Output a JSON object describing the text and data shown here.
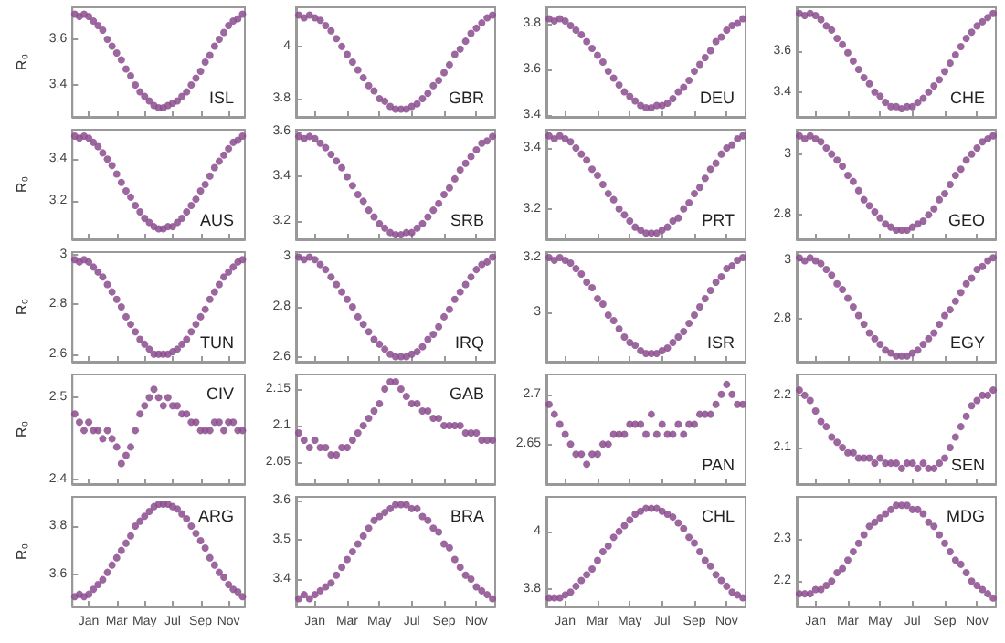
{
  "chart_data": [
    {
      "type": "scatter",
      "ylabel": "R₀",
      "annotations": [
        "ISL"
      ],
      "color": "#8b4c8e",
      "marker": "circle",
      "ylim": [
        3.26,
        3.74
      ],
      "yticks": [
        3.4,
        3.6
      ],
      "tick_labels": "y",
      "categories": [
        null,
        null,
        null,
        null,
        null,
        null,
        null,
        null,
        null,
        null,
        null,
        null,
        null,
        null,
        null,
        null,
        null,
        null,
        null,
        null,
        null,
        null,
        null,
        null,
        null,
        null,
        null,
        null,
        null,
        null,
        null,
        null,
        null,
        null,
        null,
        null,
        null
      ],
      "values": [
        3.71,
        3.7,
        3.71,
        3.7,
        3.68,
        3.66,
        3.64,
        3.6,
        3.57,
        3.54,
        3.51,
        3.47,
        3.44,
        3.4,
        3.37,
        3.35,
        3.33,
        3.31,
        3.3,
        3.3,
        3.31,
        3.32,
        3.33,
        3.35,
        3.37,
        3.4,
        3.43,
        3.46,
        3.5,
        3.53,
        3.57,
        3.6,
        3.63,
        3.66,
        3.68,
        3.69,
        3.71
      ]
    },
    {
      "type": "scatter",
      "annotations": [
        "GBR"
      ],
      "color": "#8b4c8e",
      "marker": "circle",
      "ylim": [
        3.73,
        4.15
      ],
      "yticks": [
        3.8,
        4
      ],
      "tick_labels": "y",
      "categories": [
        null,
        null,
        null,
        null,
        null,
        null,
        null,
        null,
        null,
        null,
        null,
        null,
        null,
        null,
        null,
        null,
        null,
        null,
        null,
        null,
        null,
        null,
        null,
        null,
        null,
        null,
        null,
        null,
        null,
        null,
        null,
        null,
        null,
        null,
        null,
        null,
        null
      ],
      "values": [
        4.12,
        4.11,
        4.12,
        4.11,
        4.1,
        4.08,
        4.06,
        4.03,
        4.0,
        3.97,
        3.94,
        3.91,
        3.88,
        3.85,
        3.83,
        3.8,
        3.79,
        3.77,
        3.76,
        3.76,
        3.76,
        3.77,
        3.78,
        3.8,
        3.82,
        3.85,
        3.87,
        3.9,
        3.93,
        3.97,
        3.99,
        4.02,
        4.05,
        4.07,
        4.09,
        4.11,
        4.12
      ]
    },
    {
      "type": "scatter",
      "annotations": [
        "DEU"
      ],
      "color": "#8b4c8e",
      "marker": "circle",
      "ylim": [
        3.39,
        3.87
      ],
      "yticks": [
        3.4,
        3.6,
        3.8
      ],
      "tick_labels": "y",
      "categories": [
        null,
        null,
        null,
        null,
        null,
        null,
        null,
        null,
        null,
        null,
        null,
        null,
        null,
        null,
        null,
        null,
        null,
        null,
        null,
        null,
        null,
        null,
        null,
        null,
        null,
        null,
        null,
        null,
        null,
        null,
        null,
        null,
        null,
        null,
        null,
        null,
        null
      ],
      "values": [
        3.82,
        3.81,
        3.82,
        3.81,
        3.79,
        3.77,
        3.75,
        3.72,
        3.69,
        3.66,
        3.63,
        3.59,
        3.56,
        3.53,
        3.5,
        3.48,
        3.46,
        3.44,
        3.43,
        3.43,
        3.44,
        3.44,
        3.45,
        3.47,
        3.5,
        3.52,
        3.55,
        3.59,
        3.62,
        3.65,
        3.68,
        3.72,
        3.74,
        3.77,
        3.79,
        3.8,
        3.82
      ]
    },
    {
      "type": "scatter",
      "annotations": [
        "CHE"
      ],
      "color": "#8b4c8e",
      "marker": "circle",
      "ylim": [
        3.28,
        3.81
      ],
      "yticks": [
        3.4,
        3.6
      ],
      "tick_labels": "y",
      "categories": [
        null,
        null,
        null,
        null,
        null,
        null,
        null,
        null,
        null,
        null,
        null,
        null,
        null,
        null,
        null,
        null,
        null,
        null,
        null,
        null,
        null,
        null,
        null,
        null,
        null,
        null,
        null,
        null,
        null,
        null,
        null,
        null,
        null,
        null,
        null,
        null,
        null
      ],
      "values": [
        3.78,
        3.77,
        3.78,
        3.77,
        3.75,
        3.72,
        3.7,
        3.66,
        3.63,
        3.59,
        3.55,
        3.51,
        3.47,
        3.44,
        3.4,
        3.38,
        3.35,
        3.33,
        3.33,
        3.32,
        3.33,
        3.33,
        3.35,
        3.37,
        3.4,
        3.43,
        3.46,
        3.5,
        3.54,
        3.58,
        3.62,
        3.66,
        3.69,
        3.72,
        3.74,
        3.76,
        3.78
      ]
    },
    {
      "type": "scatter",
      "ylabel": "R₀",
      "annotations": [
        "AUS"
      ],
      "color": "#8b4c8e",
      "marker": "circle",
      "ylim": [
        3.02,
        3.54
      ],
      "yticks": [
        3.2,
        3.4
      ],
      "tick_labels": "y",
      "categories": [
        null,
        null,
        null,
        null,
        null,
        null,
        null,
        null,
        null,
        null,
        null,
        null,
        null,
        null,
        null,
        null,
        null,
        null,
        null,
        null,
        null,
        null,
        null,
        null,
        null,
        null,
        null,
        null,
        null,
        null,
        null,
        null,
        null,
        null,
        null,
        null,
        null
      ],
      "values": [
        3.51,
        3.5,
        3.51,
        3.5,
        3.48,
        3.46,
        3.43,
        3.4,
        3.37,
        3.33,
        3.29,
        3.25,
        3.22,
        3.18,
        3.15,
        3.12,
        3.1,
        3.08,
        3.07,
        3.07,
        3.08,
        3.08,
        3.1,
        3.12,
        3.15,
        3.18,
        3.21,
        3.25,
        3.28,
        3.32,
        3.36,
        3.39,
        3.42,
        3.45,
        3.48,
        3.49,
        3.51
      ]
    },
    {
      "type": "scatter",
      "annotations": [
        "SRB"
      ],
      "color": "#8b4c8e",
      "marker": "circle",
      "ylim": [
        3.12,
        3.61
      ],
      "yticks": [
        3.2,
        3.4,
        3.6
      ],
      "tick_labels": "y",
      "categories": [
        null,
        null,
        null,
        null,
        null,
        null,
        null,
        null,
        null,
        null,
        null,
        null,
        null,
        null,
        null,
        null,
        null,
        null,
        null,
        null,
        null,
        null,
        null,
        null,
        null,
        null,
        null,
        null,
        null,
        null,
        null,
        null,
        null,
        null,
        null,
        null,
        null
      ],
      "values": [
        3.58,
        3.57,
        3.58,
        3.57,
        3.55,
        3.53,
        3.5,
        3.47,
        3.44,
        3.4,
        3.36,
        3.32,
        3.29,
        3.25,
        3.22,
        3.19,
        3.17,
        3.15,
        3.14,
        3.14,
        3.15,
        3.15,
        3.17,
        3.19,
        3.22,
        3.25,
        3.28,
        3.32,
        3.35,
        3.39,
        3.43,
        3.46,
        3.49,
        3.52,
        3.55,
        3.56,
        3.58
      ]
    },
    {
      "type": "scatter",
      "annotations": [
        "PRT"
      ],
      "color": "#8b4c8e",
      "marker": "circle",
      "ylim": [
        3.1,
        3.46
      ],
      "yticks": [
        3.2,
        3.4
      ],
      "tick_labels": "y",
      "categories": [
        null,
        null,
        null,
        null,
        null,
        null,
        null,
        null,
        null,
        null,
        null,
        null,
        null,
        null,
        null,
        null,
        null,
        null,
        null,
        null,
        null,
        null,
        null,
        null,
        null,
        null,
        null,
        null,
        null,
        null,
        null,
        null,
        null,
        null,
        null,
        null,
        null
      ],
      "values": [
        3.44,
        3.43,
        3.44,
        3.43,
        3.42,
        3.4,
        3.38,
        3.36,
        3.33,
        3.31,
        3.28,
        3.25,
        3.23,
        3.2,
        3.18,
        3.16,
        3.14,
        3.13,
        3.12,
        3.12,
        3.12,
        3.13,
        3.14,
        3.16,
        3.17,
        3.2,
        3.22,
        3.25,
        3.27,
        3.3,
        3.33,
        3.35,
        3.38,
        3.4,
        3.41,
        3.43,
        3.44
      ]
    },
    {
      "type": "scatter",
      "annotations": [
        "GEO"
      ],
      "color": "#8b4c8e",
      "marker": "circle",
      "ylim": [
        2.72,
        3.08
      ],
      "yticks": [
        2.8,
        3
      ],
      "tick_labels": "y",
      "categories": [
        null,
        null,
        null,
        null,
        null,
        null,
        null,
        null,
        null,
        null,
        null,
        null,
        null,
        null,
        null,
        null,
        null,
        null,
        null,
        null,
        null,
        null,
        null,
        null,
        null,
        null,
        null,
        null,
        null,
        null,
        null,
        null,
        null,
        null,
        null,
        null,
        null
      ],
      "values": [
        3.06,
        3.05,
        3.06,
        3.05,
        3.04,
        3.02,
        3.0,
        2.98,
        2.96,
        2.93,
        2.91,
        2.88,
        2.85,
        2.83,
        2.81,
        2.79,
        2.77,
        2.76,
        2.75,
        2.75,
        2.75,
        2.76,
        2.77,
        2.78,
        2.8,
        2.82,
        2.85,
        2.87,
        2.9,
        2.93,
        2.95,
        2.98,
        3.0,
        3.02,
        3.04,
        3.05,
        3.06
      ]
    },
    {
      "type": "scatter",
      "ylabel": "R₀",
      "annotations": [
        "TUN"
      ],
      "color": "#8b4c8e",
      "marker": "circle",
      "ylim": [
        2.57,
        3.01
      ],
      "yticks": [
        2.6,
        2.8,
        3
      ],
      "tick_labels": "y",
      "categories": [
        null,
        null,
        null,
        null,
        null,
        null,
        null,
        null,
        null,
        null,
        null,
        null,
        null,
        null,
        null,
        null,
        null,
        null,
        null,
        null,
        null,
        null,
        null,
        null,
        null,
        null,
        null,
        null,
        null,
        null,
        null,
        null,
        null,
        null,
        null,
        null,
        null
      ],
      "values": [
        2.98,
        2.97,
        2.98,
        2.97,
        2.95,
        2.93,
        2.91,
        2.88,
        2.85,
        2.82,
        2.79,
        2.75,
        2.72,
        2.69,
        2.66,
        2.64,
        2.62,
        2.6,
        2.6,
        2.6,
        2.6,
        2.61,
        2.62,
        2.64,
        2.66,
        2.69,
        2.72,
        2.75,
        2.78,
        2.82,
        2.85,
        2.88,
        2.91,
        2.93,
        2.95,
        2.97,
        2.98
      ]
    },
    {
      "type": "scatter",
      "annotations": [
        "IRQ"
      ],
      "color": "#8b4c8e",
      "marker": "circle",
      "ylim": [
        2.58,
        3.02
      ],
      "yticks": [
        2.6,
        2.8,
        3
      ],
      "tick_labels": "y",
      "categories": [
        null,
        null,
        null,
        null,
        null,
        null,
        null,
        null,
        null,
        null,
        null,
        null,
        null,
        null,
        null,
        null,
        null,
        null,
        null,
        null,
        null,
        null,
        null,
        null,
        null,
        null,
        null,
        null,
        null,
        null,
        null,
        null,
        null,
        null,
        null,
        null,
        null
      ],
      "values": [
        3.0,
        2.99,
        3.0,
        2.99,
        2.97,
        2.95,
        2.92,
        2.89,
        2.86,
        2.83,
        2.8,
        2.76,
        2.73,
        2.7,
        2.67,
        2.65,
        2.63,
        2.61,
        2.6,
        2.6,
        2.6,
        2.61,
        2.62,
        2.64,
        2.67,
        2.69,
        2.72,
        2.76,
        2.79,
        2.83,
        2.86,
        2.89,
        2.92,
        2.95,
        2.97,
        2.98,
        3.0
      ]
    },
    {
      "type": "scatter",
      "annotations": [
        "ISR"
      ],
      "color": "#8b4c8e",
      "marker": "circle",
      "ylim": [
        2.82,
        3.22
      ],
      "yticks": [
        3,
        3.2
      ],
      "tick_labels": "y",
      "categories": [
        null,
        null,
        null,
        null,
        null,
        null,
        null,
        null,
        null,
        null,
        null,
        null,
        null,
        null,
        null,
        null,
        null,
        null,
        null,
        null,
        null,
        null,
        null,
        null,
        null,
        null,
        null,
        null,
        null,
        null,
        null,
        null,
        null,
        null,
        null,
        null,
        null
      ],
      "values": [
        3.2,
        3.19,
        3.2,
        3.19,
        3.18,
        3.16,
        3.14,
        3.11,
        3.09,
        3.05,
        3.03,
        2.99,
        2.97,
        2.94,
        2.91,
        2.89,
        2.88,
        2.86,
        2.85,
        2.85,
        2.85,
        2.86,
        2.87,
        2.89,
        2.91,
        2.93,
        2.96,
        2.99,
        3.02,
        3.05,
        3.08,
        3.11,
        3.13,
        3.16,
        3.17,
        3.19,
        3.2
      ]
    },
    {
      "type": "scatter",
      "annotations": [
        "EGY"
      ],
      "color": "#8b4c8e",
      "marker": "circle",
      "ylim": [
        2.65,
        3.03
      ],
      "yticks": [
        2.8,
        3
      ],
      "tick_labels": "y",
      "categories": [
        null,
        null,
        null,
        null,
        null,
        null,
        null,
        null,
        null,
        null,
        null,
        null,
        null,
        null,
        null,
        null,
        null,
        null,
        null,
        null,
        null,
        null,
        null,
        null,
        null,
        null,
        null,
        null,
        null,
        null,
        null,
        null,
        null,
        null,
        null,
        null,
        null
      ],
      "values": [
        3.01,
        3.0,
        3.01,
        3.0,
        2.99,
        2.97,
        2.95,
        2.92,
        2.9,
        2.87,
        2.84,
        2.81,
        2.78,
        2.75,
        2.73,
        2.71,
        2.69,
        2.68,
        2.67,
        2.67,
        2.67,
        2.68,
        2.69,
        2.71,
        2.73,
        2.75,
        2.78,
        2.81,
        2.83,
        2.86,
        2.89,
        2.92,
        2.94,
        2.97,
        2.98,
        3.0,
        3.01
      ]
    },
    {
      "type": "scatter",
      "ylabel": "R₀",
      "annotations": [
        "CIV"
      ],
      "color": "#8b4c8e",
      "marker": "circle",
      "ylim": [
        2.395,
        2.528
      ],
      "yticks": [
        2.4,
        2.5
      ],
      "tick_labels": "y",
      "categories": [
        null,
        null,
        null,
        null,
        null,
        null,
        null,
        null,
        null,
        null,
        null,
        null,
        null,
        null,
        null,
        null,
        null,
        null,
        null,
        null,
        null,
        null,
        null,
        null,
        null,
        null,
        null,
        null,
        null,
        null,
        null,
        null,
        null,
        null,
        null,
        null,
        null
      ],
      "values": [
        2.48,
        2.47,
        2.46,
        2.47,
        2.46,
        2.46,
        2.45,
        2.46,
        2.45,
        2.44,
        2.42,
        2.43,
        2.44,
        2.46,
        2.48,
        2.49,
        2.5,
        2.51,
        2.5,
        2.49,
        2.5,
        2.49,
        2.49,
        2.48,
        2.48,
        2.47,
        2.47,
        2.46,
        2.46,
        2.46,
        2.47,
        2.47,
        2.46,
        2.47,
        2.47,
        2.46,
        2.46
      ]
    },
    {
      "type": "scatter",
      "annotations": [
        "GAB"
      ],
      "color": "#8b4c8e",
      "marker": "circle",
      "ylim": [
        2.02,
        2.17
      ],
      "yticks": [
        2.05,
        2.1,
        2.15
      ],
      "tick_labels": "y",
      "categories": [
        null,
        null,
        null,
        null,
        null,
        null,
        null,
        null,
        null,
        null,
        null,
        null,
        null,
        null,
        null,
        null,
        null,
        null,
        null,
        null,
        null,
        null,
        null,
        null,
        null,
        null,
        null,
        null,
        null,
        null,
        null,
        null,
        null,
        null,
        null,
        null,
        null
      ],
      "values": [
        2.09,
        2.08,
        2.07,
        2.08,
        2.07,
        2.07,
        2.06,
        2.06,
        2.07,
        2.07,
        2.08,
        2.09,
        2.1,
        2.11,
        2.12,
        2.13,
        2.15,
        2.16,
        2.16,
        2.15,
        2.14,
        2.13,
        2.13,
        2.12,
        2.12,
        2.11,
        2.11,
        2.1,
        2.1,
        2.1,
        2.1,
        2.09,
        2.09,
        2.09,
        2.08,
        2.08,
        2.08
      ]
    },
    {
      "type": "scatter",
      "annotations": [
        "PAN"
      ],
      "color": "#8b4c8e",
      "marker": "circle",
      "ylim": [
        2.61,
        2.72
      ],
      "yticks": [
        2.65,
        2.7
      ],
      "tick_labels": "y",
      "categories": [
        null,
        null,
        null,
        null,
        null,
        null,
        null,
        null,
        null,
        null,
        null,
        null,
        null,
        null,
        null,
        null,
        null,
        null,
        null,
        null,
        null,
        null,
        null,
        null,
        null,
        null,
        null,
        null,
        null,
        null,
        null,
        null,
        null,
        null,
        null,
        null,
        null
      ],
      "values": [
        2.69,
        2.68,
        2.67,
        2.66,
        2.65,
        2.64,
        2.64,
        2.63,
        2.64,
        2.64,
        2.65,
        2.65,
        2.66,
        2.66,
        2.66,
        2.67,
        2.67,
        2.67,
        2.66,
        2.68,
        2.66,
        2.67,
        2.66,
        2.66,
        2.67,
        2.66,
        2.67,
        2.67,
        2.68,
        2.68,
        2.68,
        2.69,
        2.7,
        2.71,
        2.7,
        2.69,
        2.69
      ]
    },
    {
      "type": "scatter",
      "annotations": [
        "SEN"
      ],
      "color": "#8b4c8e",
      "marker": "circle",
      "ylim": [
        2.03,
        2.24
      ],
      "yticks": [
        2.1,
        2.2
      ],
      "tick_labels": "y",
      "categories": [
        null,
        null,
        null,
        null,
        null,
        null,
        null,
        null,
        null,
        null,
        null,
        null,
        null,
        null,
        null,
        null,
        null,
        null,
        null,
        null,
        null,
        null,
        null,
        null,
        null,
        null,
        null,
        null,
        null,
        null,
        null,
        null,
        null,
        null,
        null,
        null,
        null
      ],
      "values": [
        2.21,
        2.2,
        2.19,
        2.17,
        2.15,
        2.14,
        2.12,
        2.11,
        2.1,
        2.09,
        2.09,
        2.08,
        2.08,
        2.08,
        2.07,
        2.08,
        2.07,
        2.07,
        2.07,
        2.06,
        2.07,
        2.07,
        2.06,
        2.07,
        2.06,
        2.06,
        2.07,
        2.08,
        2.1,
        2.12,
        2.14,
        2.16,
        2.18,
        2.19,
        2.2,
        2.2,
        2.21
      ]
    },
    {
      "type": "scatter",
      "ylabel": "R₀",
      "annotations": [
        "ARG"
      ],
      "color": "#8b4c8e",
      "marker": "circle",
      "ylim": [
        3.47,
        3.92
      ],
      "yticks": [
        3.6,
        3.8
      ],
      "categories": [
        null,
        null,
        null,
        "Jan",
        null,
        null,
        null,
        null,
        null,
        "Mar",
        null,
        null,
        null,
        null,
        null,
        "May",
        null,
        null,
        null,
        null,
        null,
        "Jul",
        null,
        null,
        null,
        null,
        null,
        "Sep",
        null,
        null,
        null,
        null,
        null,
        "Nov",
        null,
        null,
        null
      ],
      "values": [
        3.51,
        3.52,
        3.51,
        3.52,
        3.54,
        3.56,
        3.58,
        3.61,
        3.64,
        3.67,
        3.7,
        3.73,
        3.76,
        3.8,
        3.82,
        3.84,
        3.86,
        3.88,
        3.89,
        3.89,
        3.89,
        3.88,
        3.87,
        3.85,
        3.83,
        3.8,
        3.77,
        3.74,
        3.71,
        3.67,
        3.64,
        3.61,
        3.59,
        3.56,
        3.54,
        3.53,
        3.51
      ]
    },
    {
      "type": "scatter",
      "annotations": [
        "BRA"
      ],
      "color": "#8b4c8e",
      "marker": "circle",
      "ylim": [
        3.33,
        3.61
      ],
      "yticks": [
        3.4,
        3.5,
        3.6
      ],
      "categories": [
        null,
        null,
        null,
        "Jan",
        null,
        null,
        null,
        null,
        null,
        "Mar",
        null,
        null,
        null,
        null,
        null,
        "May",
        null,
        null,
        null,
        null,
        null,
        "Jul",
        null,
        null,
        null,
        null,
        null,
        "Sep",
        null,
        null,
        null,
        null,
        null,
        "Nov",
        null,
        null,
        null
      ],
      "values": [
        3.35,
        3.36,
        3.35,
        3.36,
        3.37,
        3.38,
        3.39,
        3.41,
        3.43,
        3.45,
        3.47,
        3.49,
        3.51,
        3.53,
        3.55,
        3.56,
        3.57,
        3.58,
        3.59,
        3.59,
        3.59,
        3.58,
        3.58,
        3.56,
        3.55,
        3.53,
        3.52,
        3.49,
        3.48,
        3.45,
        3.43,
        3.41,
        3.4,
        3.38,
        3.37,
        3.36,
        3.35
      ]
    },
    {
      "type": "scatter",
      "annotations": [
        "CHL"
      ],
      "color": "#8b4c8e",
      "marker": "circle",
      "ylim": [
        3.74,
        4.12
      ],
      "yticks": [
        3.8,
        4
      ],
      "categories": [
        null,
        null,
        null,
        "Jan",
        null,
        null,
        null,
        null,
        null,
        "Mar",
        null,
        null,
        null,
        null,
        null,
        "May",
        null,
        null,
        null,
        null,
        null,
        "Jul",
        null,
        null,
        null,
        null,
        null,
        "Sep",
        null,
        null,
        null,
        null,
        null,
        "Nov",
        null,
        null,
        null
      ],
      "values": [
        3.77,
        3.77,
        3.77,
        3.78,
        3.79,
        3.81,
        3.83,
        3.85,
        3.87,
        3.9,
        3.93,
        3.95,
        3.98,
        4.0,
        4.02,
        4.04,
        4.06,
        4.07,
        4.08,
        4.08,
        4.08,
        4.07,
        4.06,
        4.05,
        4.03,
        4.01,
        3.98,
        3.96,
        3.93,
        3.9,
        3.88,
        3.85,
        3.83,
        3.81,
        3.79,
        3.78,
        3.77
      ]
    },
    {
      "type": "scatter",
      "annotations": [
        "MDG"
      ],
      "color": "#8b4c8e",
      "marker": "circle",
      "ylim": [
        2.14,
        2.4
      ],
      "yticks": [
        2.2,
        2.3
      ],
      "categories": [
        null,
        null,
        null,
        "Jan",
        null,
        null,
        null,
        null,
        null,
        "Mar",
        null,
        null,
        null,
        null,
        null,
        "May",
        null,
        null,
        null,
        null,
        null,
        "Jul",
        null,
        null,
        null,
        null,
        null,
        "Sep",
        null,
        null,
        null,
        null,
        null,
        "Nov",
        null,
        null,
        null
      ],
      "values": [
        2.17,
        2.17,
        2.17,
        2.18,
        2.18,
        2.19,
        2.2,
        2.22,
        2.23,
        2.25,
        2.27,
        2.29,
        2.31,
        2.33,
        2.34,
        2.35,
        2.36,
        2.37,
        2.38,
        2.38,
        2.38,
        2.37,
        2.37,
        2.36,
        2.34,
        2.33,
        2.31,
        2.29,
        2.27,
        2.25,
        2.24,
        2.22,
        2.2,
        2.19,
        2.18,
        2.17,
        2.16
      ]
    }
  ]
}
